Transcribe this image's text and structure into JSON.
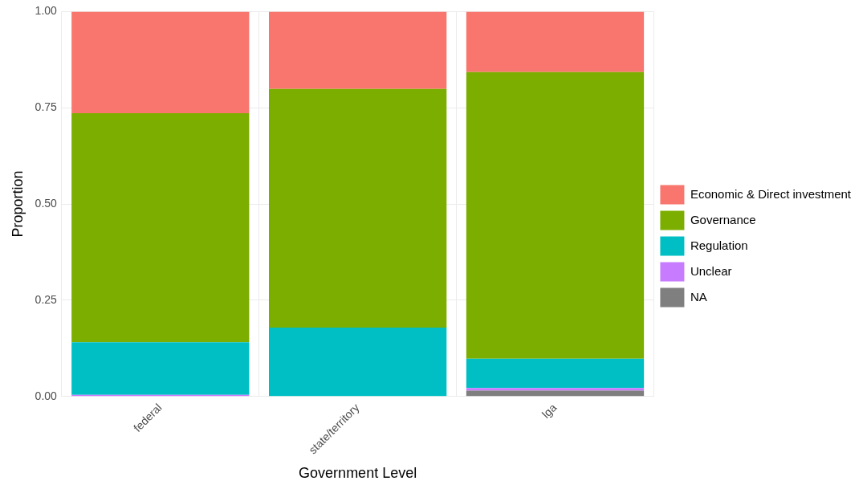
{
  "chart_data": {
    "type": "bar",
    "stacked": true,
    "x_label": "Government Level",
    "y_label": "Proportion",
    "categories": [
      "federal",
      "state/territory",
      "lga"
    ],
    "ylim": [
      0,
      1
    ],
    "yticks": [
      {
        "value": 0,
        "label": "0.00"
      },
      {
        "value": 0.25,
        "label": "0.25"
      },
      {
        "value": 0.5,
        "label": "0.50"
      },
      {
        "value": 0.75,
        "label": "0.75"
      },
      {
        "value": 1,
        "label": "1.00"
      }
    ],
    "grid": true,
    "legend": "right",
    "series": [
      {
        "name": "Economic & Direct investment",
        "color": "#F8766D",
        "values": [
          0.264,
          0.201,
          0.157
        ]
      },
      {
        "name": "Governance",
        "color": "#7CAE00",
        "values": [
          0.595,
          0.62,
          0.745
        ]
      },
      {
        "name": "Regulation",
        "color": "#00BFC4",
        "values": [
          0.137,
          0.179,
          0.076
        ]
      },
      {
        "name": "Unclear",
        "color": "#C77CFF",
        "values": [
          0.004,
          0,
          0.007
        ]
      },
      {
        "name": "NA",
        "color": "#7F7F7F",
        "values": [
          0,
          0,
          0.015
        ]
      }
    ]
  }
}
